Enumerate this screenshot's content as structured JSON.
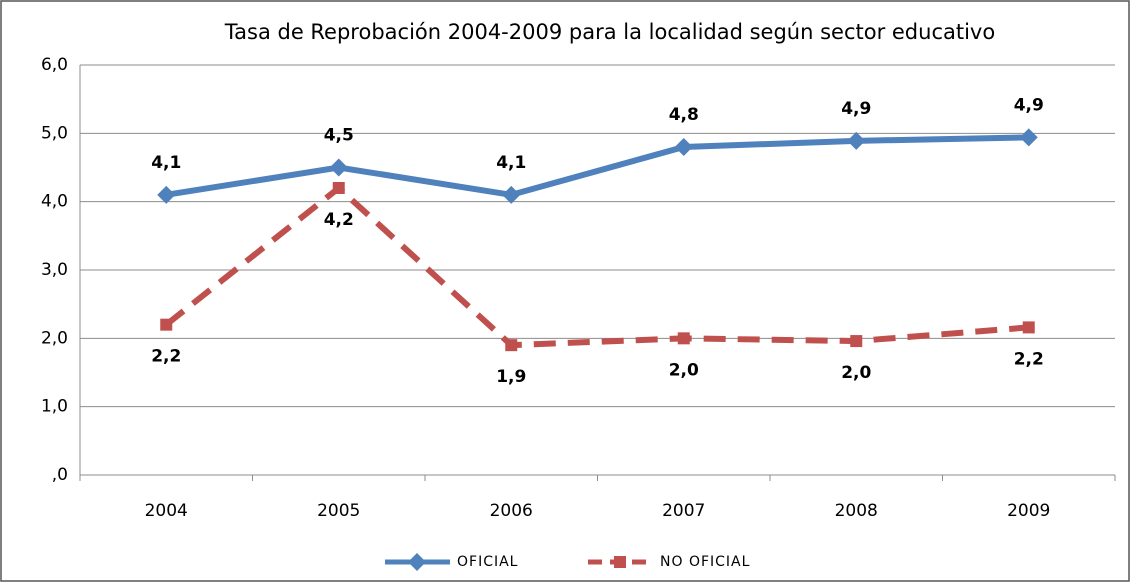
{
  "chart_data": {
    "type": "line",
    "title": "Tasa de Reprobación 2004-2009 para la localidad según  sector educativo",
    "categories": [
      "2004",
      "2005",
      "2006",
      "2007",
      "2008",
      "2009"
    ],
    "series": [
      {
        "name": "OFICIAL",
        "color": "#4f81bd",
        "marker": "diamond",
        "dashed": false,
        "values": [
          4.1,
          4.5,
          4.1,
          4.8,
          4.89,
          4.94
        ],
        "value_labels": [
          "4,1",
          "4,5",
          "4,1",
          "4,8",
          "4,9",
          "4,9"
        ]
      },
      {
        "name": "NO OFICIAL",
        "color": "#c0504d",
        "marker": "square",
        "dashed": true,
        "values": [
          2.2,
          4.2,
          1.9,
          2.0,
          1.96,
          2.16
        ],
        "value_labels": [
          "2,2",
          "4,2",
          "1,9",
          "2,0",
          "2,0",
          "2,2"
        ]
      }
    ],
    "ylim": [
      0,
      6
    ],
    "yticks": [
      {
        "value": 0,
        "label": ",0"
      },
      {
        "value": 1,
        "label": "1,0"
      },
      {
        "value": 2,
        "label": "2,0"
      },
      {
        "value": 3,
        "label": "3,0"
      },
      {
        "value": 4,
        "label": "4,0"
      },
      {
        "value": 5,
        "label": "5,0"
      },
      {
        "value": 6,
        "label": "6,0"
      }
    ],
    "grid": true,
    "legend": "bottom"
  }
}
